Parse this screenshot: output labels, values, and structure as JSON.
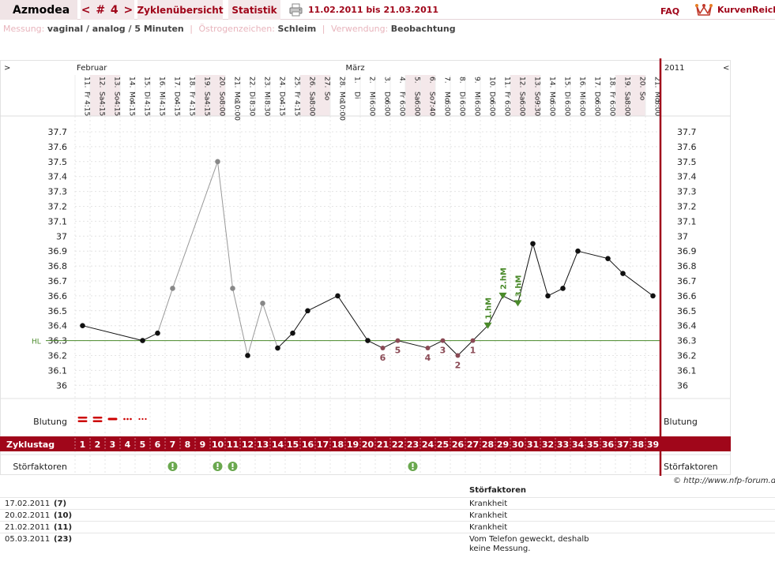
{
  "header": {
    "user": "Azmodea",
    "nav": "< # 4 >",
    "tab_cycles": "Zyklenübersicht",
    "tab_stats": "Statistik",
    "print_icon": "printer-icon",
    "date_range": "11.02.2011 bis 21.03.2011",
    "faq": "FAQ",
    "logo_icon": "kurvenreich-crown-icon",
    "logo_text": "KurvenReich"
  },
  "info": {
    "measure_label": "Messung:",
    "measure_value": "vaginal / analog / 5 Minuten",
    "estrogen_label": "Östrogenzeichen:",
    "estrogen_value": "Schleim",
    "usage_label": "Verwendung:",
    "usage_value": "Beobachtung"
  },
  "chart_data": {
    "type": "line",
    "nav_left": ">",
    "nav_right": "<",
    "year": "2011",
    "months": [
      {
        "label": "Februar",
        "start_index": 0
      },
      {
        "label": "März",
        "start_index": 18
      }
    ],
    "days": [
      {
        "d": "11.",
        "w": "Fr",
        "t": "4:15"
      },
      {
        "d": "12.",
        "w": "Sa",
        "t": "4:15",
        "we": true
      },
      {
        "d": "13.",
        "w": "So",
        "t": "4:15",
        "we": true
      },
      {
        "d": "14.",
        "w": "Mo",
        "t": "4:15"
      },
      {
        "d": "15.",
        "w": "Di",
        "t": "4:15"
      },
      {
        "d": "16.",
        "w": "Mi",
        "t": "4:15"
      },
      {
        "d": "17.",
        "w": "Do",
        "t": "4:15"
      },
      {
        "d": "18.",
        "w": "Fr",
        "t": "4:15"
      },
      {
        "d": "19.",
        "w": "Sa",
        "t": "4:15",
        "we": true
      },
      {
        "d": "20.",
        "w": "So",
        "t": "8:00",
        "we": true
      },
      {
        "d": "21.",
        "w": "Mo",
        "t": "10:00"
      },
      {
        "d": "22.",
        "w": "Di",
        "t": "8:30"
      },
      {
        "d": "23.",
        "w": "Mi",
        "t": "8:30"
      },
      {
        "d": "24.",
        "w": "Do",
        "t": "4:15"
      },
      {
        "d": "25.",
        "w": "Fr",
        "t": "4:15"
      },
      {
        "d": "26.",
        "w": "Sa",
        "t": "8:00",
        "we": true
      },
      {
        "d": "27.",
        "w": "So",
        "t": "",
        "we": true
      },
      {
        "d": "28.",
        "w": "Mo",
        "t": "10:00"
      },
      {
        "d": "1.",
        "w": "Di",
        "t": ""
      },
      {
        "d": "2.",
        "w": "Mi",
        "t": "6:00"
      },
      {
        "d": "3.",
        "w": "Do",
        "t": "6:00"
      },
      {
        "d": "4.",
        "w": "Fr",
        "t": "6:00"
      },
      {
        "d": "5.",
        "w": "Sa",
        "t": "6:00",
        "we": true
      },
      {
        "d": "6.",
        "w": "So",
        "t": "7:40",
        "we": true
      },
      {
        "d": "7.",
        "w": "Mo",
        "t": "6:00"
      },
      {
        "d": "8.",
        "w": "Di",
        "t": "6:00"
      },
      {
        "d": "9.",
        "w": "Mi",
        "t": "6:00"
      },
      {
        "d": "10.",
        "w": "Do",
        "t": "6:00"
      },
      {
        "d": "11.",
        "w": "Fr",
        "t": "6:00"
      },
      {
        "d": "12.",
        "w": "Sa",
        "t": "6:00",
        "we": true
      },
      {
        "d": "13.",
        "w": "So",
        "t": "9:30",
        "we": true
      },
      {
        "d": "14.",
        "w": "Mo",
        "t": "6:00"
      },
      {
        "d": "15.",
        "w": "Di",
        "t": "6:00"
      },
      {
        "d": "16.",
        "w": "Mi",
        "t": "6:00"
      },
      {
        "d": "17.",
        "w": "Do",
        "t": "6:00"
      },
      {
        "d": "18.",
        "w": "Fr",
        "t": "6:00"
      },
      {
        "d": "19.",
        "w": "Sa",
        "t": "8:00",
        "we": true
      },
      {
        "d": "20.",
        "w": "So",
        "t": "",
        "we": true
      },
      {
        "d": "21.",
        "w": "Mo",
        "t": "8:00"
      }
    ],
    "ylim": [
      35.95,
      37.75
    ],
    "y_ticks": [
      "37.7",
      "37.6",
      "37.5",
      "37.4",
      "37.3",
      "37.2",
      "37.1",
      "37",
      "36.9",
      "36.8",
      "36.7",
      "36.6",
      "36.5",
      "36.4",
      "36.3",
      "36.2",
      "36.1",
      "36"
    ],
    "temps": [
      36.4,
      null,
      null,
      null,
      36.3,
      36.35,
      36.65,
      null,
      null,
      37.5,
      36.65,
      36.2,
      36.55,
      36.25,
      36.35,
      36.5,
      null,
      36.6,
      null,
      36.3,
      36.25,
      36.3,
      null,
      36.25,
      36.3,
      36.2,
      36.3,
      36.4,
      36.6,
      36.55,
      36.95,
      36.6,
      36.65,
      36.9,
      null,
      36.85,
      36.75,
      null,
      36.6
    ],
    "disturbed_days": [
      6,
      9,
      10,
      12
    ],
    "hl": {
      "label": "HL",
      "value": 36.3
    },
    "count_labels": [
      {
        "i": 20,
        "label": "6"
      },
      {
        "i": 21,
        "label": "5"
      },
      {
        "i": 23,
        "label": "4"
      },
      {
        "i": 24,
        "label": "3"
      },
      {
        "i": 25,
        "label": "2"
      },
      {
        "i": 26,
        "label": "1"
      }
    ],
    "hm_labels": [
      {
        "i": 27,
        "label": "1.hM"
      },
      {
        "i": 28,
        "label": "2.hM"
      },
      {
        "i": 29,
        "label": "3.hM"
      }
    ],
    "bleeding_label": "Blutung",
    "bleeding": [
      "heavy",
      "heavy",
      "medium",
      "light",
      "spotting"
    ],
    "cycle_day_label": "Zyklustag",
    "cycle_days": [
      "1",
      "2",
      "3",
      "4",
      "5",
      "6",
      "7",
      "8",
      "9",
      "10",
      "11",
      "12",
      "13",
      "14",
      "15",
      "16",
      "17",
      "18",
      "19",
      "20",
      "21",
      "22",
      "23",
      "24",
      "25",
      "26",
      "27",
      "28",
      "29",
      "30",
      "31",
      "32",
      "33",
      "34",
      "35",
      "36",
      "37",
      "38",
      "39"
    ],
    "disturb_label": "Störfaktoren",
    "disturb_icon": "exclamation-circle-icon",
    "disturb_marks": [
      6,
      9,
      10,
      22
    ],
    "colors": {
      "accent": "#a0061a",
      "weekend": "#f4e8ea",
      "coverline": "#4a8a2a",
      "hm_marker": "#4a8a2a",
      "count_label": "#8a4a55",
      "disturbed_point": "#888888",
      "disturb_icon": "#6aa84f"
    }
  },
  "notes": {
    "header": "Störfaktoren",
    "copyright": "© http://www.nfp-forum.de",
    "rows": [
      {
        "date": "17.02.2011",
        "cycle": "(7)",
        "text": "Krankheit"
      },
      {
        "date": "20.02.2011",
        "cycle": "(10)",
        "text": "Krankheit"
      },
      {
        "date": "21.02.2011",
        "cycle": "(11)",
        "text": "Krankheit"
      },
      {
        "date": "05.03.2011",
        "cycle": "(23)",
        "text": "Vom Telefon geweckt, deshalb keine Messung."
      }
    ]
  }
}
